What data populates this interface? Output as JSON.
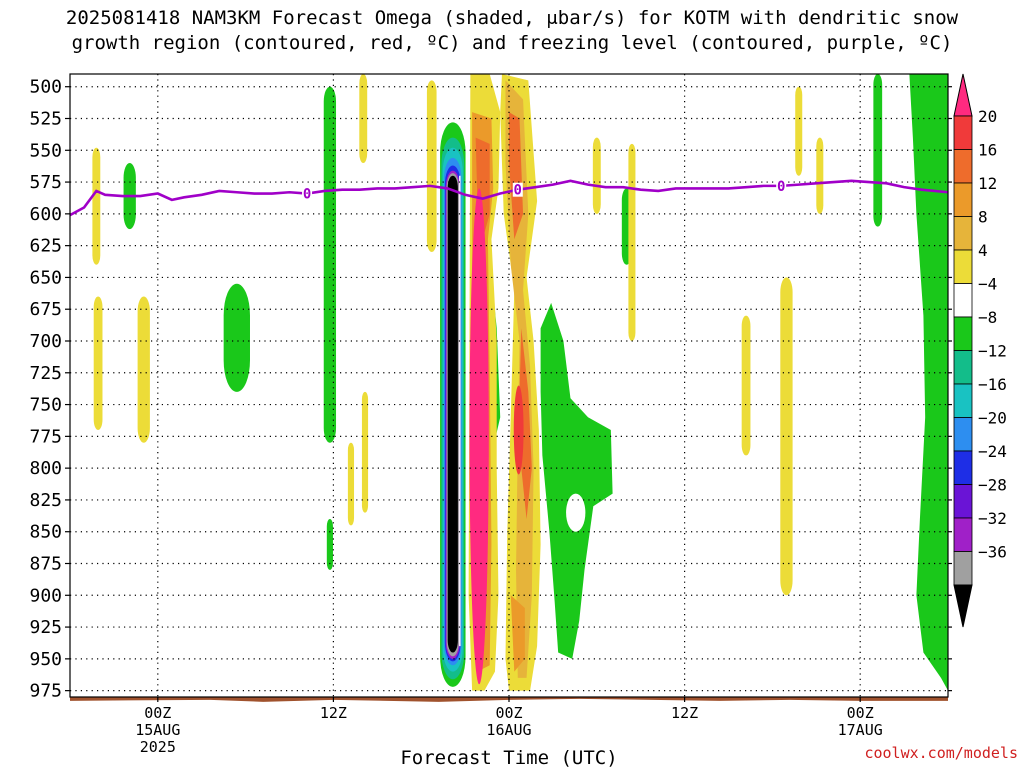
{
  "title": {
    "line1": "2025081418 NAM3KM Forecast Omega (shaded, μbar/s) for KOTM with dendritic snow",
    "line2": "growth region (contoured, red, ºC) and freezing level (contoured, purple, ºC)"
  },
  "credit": "coolwx.com/models",
  "chart_data": {
    "type": "heatmap",
    "title": "2025081418 NAM3KM Forecast Omega (shaded, μbar/s) for KOTM with dendritic snow growth region (contoured, red, ºC) and freezing level (contoured, purple, ºC)",
    "xlabel": "Forecast Time (UTC)",
    "ylabel": "",
    "x_range_hours": [
      -5,
      45
    ],
    "y_range_hpa": [
      490,
      980
    ],
    "y_ticks": [
      500,
      525,
      550,
      575,
      600,
      625,
      650,
      675,
      700,
      725,
      750,
      775,
      800,
      825,
      850,
      875,
      900,
      925,
      950,
      975
    ],
    "x_ticks": [
      {
        "hour": 0,
        "lines": [
          "00Z",
          "15AUG",
          "2025"
        ]
      },
      {
        "hour": 10,
        "lines": [
          "12Z"
        ]
      },
      {
        "hour": 20,
        "lines": [
          "00Z",
          "16AUG"
        ]
      },
      {
        "hour": 30,
        "lines": [
          "12Z"
        ]
      },
      {
        "hour": 40,
        "lines": [
          "00Z",
          "17AUG"
        ]
      }
    ],
    "grid": true,
    "colorbar": {
      "labels": [
        "20",
        "16",
        "12",
        "8",
        "4",
        "−4",
        "−8",
        "−12",
        "−16",
        "−20",
        "−24",
        "−28",
        "−32",
        "−36"
      ],
      "colors": [
        "#ff2a80",
        "#f03a3a",
        "#ee6c2c",
        "#eb9a2a",
        "#e6b43a",
        "#ecdc38",
        "#ffffff",
        "#1ac81a",
        "#13bd8a",
        "#19c2c2",
        "#2d8ef0",
        "#1e2ee6",
        "#6a14d6",
        "#a020c8",
        "#a0a0a0",
        "#000000"
      ]
    },
    "freezing_level": {
      "label": "0",
      "color": "#a000c8",
      "points": [
        [
          -5,
          601
        ],
        [
          -4.2,
          595
        ],
        [
          -3.5,
          582
        ],
        [
          -3,
          585
        ],
        [
          -2,
          586
        ],
        [
          -1,
          586
        ],
        [
          0,
          584
        ],
        [
          0.8,
          589
        ],
        [
          1.5,
          587
        ],
        [
          2.5,
          585
        ],
        [
          3.5,
          582
        ],
        [
          4.5,
          583
        ],
        [
          5.5,
          584
        ],
        [
          6.5,
          584
        ],
        [
          7.5,
          583
        ],
        [
          8.5,
          584
        ],
        [
          9.5,
          582
        ],
        [
          10.5,
          581
        ],
        [
          11.5,
          581
        ],
        [
          12.5,
          580
        ],
        [
          13.5,
          580
        ],
        [
          14.5,
          579
        ],
        [
          15.5,
          578
        ],
        [
          16.5,
          580
        ],
        [
          17.5,
          585
        ],
        [
          18.5,
          588
        ],
        [
          19.5,
          584
        ],
        [
          20.5,
          581
        ],
        [
          21.5,
          579
        ],
        [
          22.5,
          577
        ],
        [
          23.5,
          574
        ],
        [
          24.5,
          577
        ],
        [
          25.5,
          579
        ],
        [
          26.5,
          579
        ],
        [
          27.5,
          581
        ],
        [
          28.5,
          582
        ],
        [
          29.5,
          580
        ],
        [
          30.5,
          580
        ],
        [
          31.5,
          580
        ],
        [
          32.5,
          580
        ],
        [
          33.5,
          579
        ],
        [
          34.5,
          578
        ],
        [
          35.5,
          578
        ],
        [
          36.5,
          577
        ],
        [
          37.5,
          576
        ],
        [
          38.5,
          575
        ],
        [
          39.5,
          574
        ],
        [
          40.5,
          575
        ],
        [
          41.5,
          576
        ],
        [
          42.5,
          579
        ],
        [
          43.5,
          581
        ],
        [
          45,
          583
        ]
      ],
      "label_hours": [
        8.5,
        20.5,
        35.5
      ]
    },
    "surface": {
      "pressure_hpa": 983,
      "color": "#a0522d"
    },
    "omega_features": [
      {
        "name": "strong updraft core",
        "hour": 16.8,
        "top_hpa": 570,
        "bottom_hpa": 952,
        "min_value": -36,
        "color": "#000000"
      },
      {
        "name": "strong downdraft",
        "hour": 18.3,
        "top_hpa": 580,
        "bottom_hpa": 975,
        "max_value": 20,
        "color": "#ff2a80"
      },
      {
        "name": "moderate downdraft",
        "hour": 20.5,
        "top_hpa": 660,
        "bottom_hpa": 970,
        "max_value": 16,
        "color": "#ee6c2c"
      },
      {
        "name": "weak updraft band (17AUG)",
        "hour": 44.3,
        "top_hpa": 490,
        "bottom_hpa": 975,
        "min_value": -8,
        "color": "#1ac81a"
      }
    ]
  }
}
